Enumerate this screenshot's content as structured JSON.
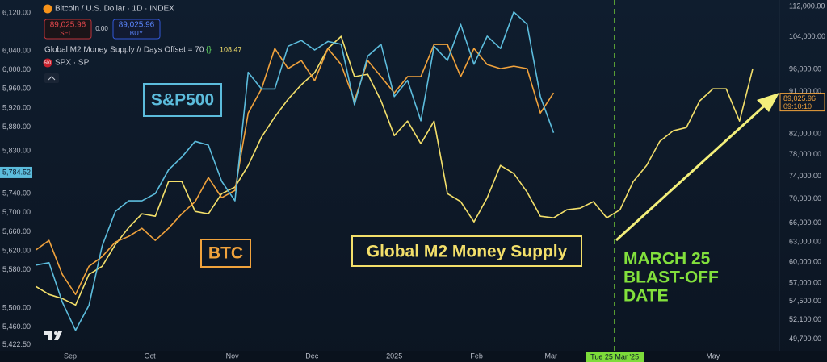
{
  "chart_data": {
    "type": "line",
    "header": {
      "symbol": "Bitcoin / U.S. Dollar · 1D · INDEX",
      "sell_price": "89,025.96",
      "sell": "SELL",
      "spread": "0.00",
      "buy_price": "89,025.96",
      "buy": "BUY",
      "indicator": "Global M2 Money Supply // Days Offset = 70",
      "indicator_value": 108.47,
      "overlay_badge": "500",
      "overlay": "SPX · SP"
    },
    "x": [
      232,
      237,
      242,
      247,
      252,
      257,
      262,
      267,
      272,
      277,
      282,
      287,
      292,
      297,
      302,
      307,
      312,
      317,
      322,
      327,
      332,
      337,
      342,
      347,
      352,
      357,
      362,
      367,
      372,
      377,
      382,
      387,
      392,
      397,
      402,
      407,
      412,
      417,
      422,
      427,
      432,
      437,
      442,
      447,
      452,
      457,
      462,
      467,
      472,
      477,
      482,
      487,
      492,
      497,
      502
    ],
    "xlim": [
      231,
      512
    ],
    "xticks": [
      {
        "value": 245,
        "label": "Sep"
      },
      {
        "value": 275,
        "label": "Oct"
      },
      {
        "value": 306,
        "label": "Nov"
      },
      {
        "value": 336,
        "label": "Dec"
      },
      {
        "value": 367,
        "label": "2025"
      },
      {
        "value": 398,
        "label": "Feb"
      },
      {
        "value": 426,
        "label": "Mar"
      },
      {
        "value": 487,
        "label": "May"
      }
    ],
    "vline": {
      "value": 450,
      "label": "Tue 25 Mar '25",
      "color": "#7ddc3a"
    },
    "ylim": [
      5410,
      6147
    ],
    "yticks": [
      {
        "value": 6120,
        "label": "6,120.00"
      },
      {
        "value": 6040,
        "label": "6,040.00"
      },
      {
        "value": 6000,
        "label": "6,000.00"
      },
      {
        "value": 5960,
        "label": "5,960.00"
      },
      {
        "value": 5920,
        "label": "5,920.00"
      },
      {
        "value": 5880,
        "label": "5,880.00"
      },
      {
        "value": 5830,
        "label": "5,830.00"
      },
      {
        "value": 5740,
        "label": "5,740.00"
      },
      {
        "value": 5700,
        "label": "5,700.00"
      },
      {
        "value": 5660,
        "label": "5,660.00"
      },
      {
        "value": 5620,
        "label": "5,620.00"
      },
      {
        "value": 5580,
        "label": "5,580.00"
      },
      {
        "value": 5500,
        "label": "5,500.00"
      },
      {
        "value": 5460,
        "label": "5,460.00"
      },
      {
        "value": 5422.5,
        "label": "5,422.50"
      }
    ],
    "y2lim": [
      48300,
      113800
    ],
    "y2log": true,
    "y2ticks": [
      {
        "value": 112000,
        "label": "112,000.00"
      },
      {
        "value": 104000,
        "label": "104,000.00"
      },
      {
        "value": 96000,
        "label": "96,000.00"
      },
      {
        "value": 91000,
        "label": "91,000.00"
      },
      {
        "value": 82000,
        "label": "82,000.00"
      },
      {
        "value": 78000,
        "label": "78,000.00"
      },
      {
        "value": 74000,
        "label": "74,000.00"
      },
      {
        "value": 70000,
        "label": "70,000.00"
      },
      {
        "value": 66000,
        "label": "66,000.00"
      },
      {
        "value": 63000,
        "label": "63,000.00"
      },
      {
        "value": 60000,
        "label": "60,000.00"
      },
      {
        "value": 57000,
        "label": "57,000.00"
      },
      {
        "value": 54500,
        "label": "54,500.00"
      },
      {
        "value": 52100,
        "label": "52,100.00"
      },
      {
        "value": 49700,
        "label": "49,700.00"
      }
    ],
    "grid": false,
    "series": [
      {
        "name": "S&P500",
        "color": "#5cbcdc",
        "axis": "y",
        "values": [
          5590,
          5595,
          5512,
          5453,
          5505,
          5630,
          5703,
          5725,
          5725,
          5740,
          5790,
          5817,
          5850,
          5842,
          5766,
          5725,
          5995,
          5960,
          5960,
          6050,
          6062,
          6042,
          6060,
          6054,
          5927,
          6029,
          6054,
          5944,
          5978,
          5893,
          6050,
          6020,
          6096,
          6012,
          6071,
          6045,
          6122,
          6096,
          5944,
          5868,
          null,
          null,
          null,
          null,
          null,
          null,
          null,
          null,
          null,
          null,
          null,
          null,
          null,
          null,
          null
        ]
      },
      {
        "name": "BTC",
        "color": "#f0a23c",
        "axis": "y2",
        "values": [
          61770,
          63240,
          58200,
          55420,
          59370,
          60790,
          62990,
          63870,
          65140,
          63240,
          65140,
          67490,
          69520,
          73740,
          70200,
          71460,
          86340,
          91600,
          101100,
          96230,
          98140,
          93430,
          101100,
          97180,
          88940,
          98140,
          94350,
          90700,
          94350,
          94350,
          102090,
          102090,
          94350,
          101100,
          97180,
          96230,
          96800,
          96230,
          86340,
          90700,
          null,
          null,
          null,
          null,
          null,
          null,
          null,
          null,
          null,
          null,
          null,
          null,
          null,
          null,
          null
        ]
      },
      {
        "name": "Global M2 Money Supply",
        "color": "#f3df6a",
        "axis": "y2",
        "values": [
          56520,
          55420,
          54870,
          54010,
          58200,
          59370,
          62620,
          65260,
          67490,
          67090,
          73020,
          73020,
          67890,
          67490,
          70900,
          72030,
          75960,
          81390,
          85500,
          89290,
          92510,
          95290,
          101100,
          104130,
          94350,
          94910,
          88940,
          81700,
          84650,
          80110,
          84650,
          70900,
          69520,
          66170,
          70200,
          75960,
          74480,
          71180,
          67090,
          66830,
          68160,
          68420,
          69520,
          66830,
          68160,
          73020,
          75960,
          80580,
          82680,
          83330,
          88940,
          91600,
          91600,
          84650,
          96230
        ]
      }
    ],
    "last_labels": {
      "y": {
        "value": 5784.52,
        "label": "5,784.52"
      },
      "y2": {
        "value": 89025.96,
        "label": "89,025.96",
        "time": "09:10:10"
      }
    },
    "annotations": [
      "MARCH 25",
      "BLAST-OFF",
      "DATE"
    ]
  }
}
